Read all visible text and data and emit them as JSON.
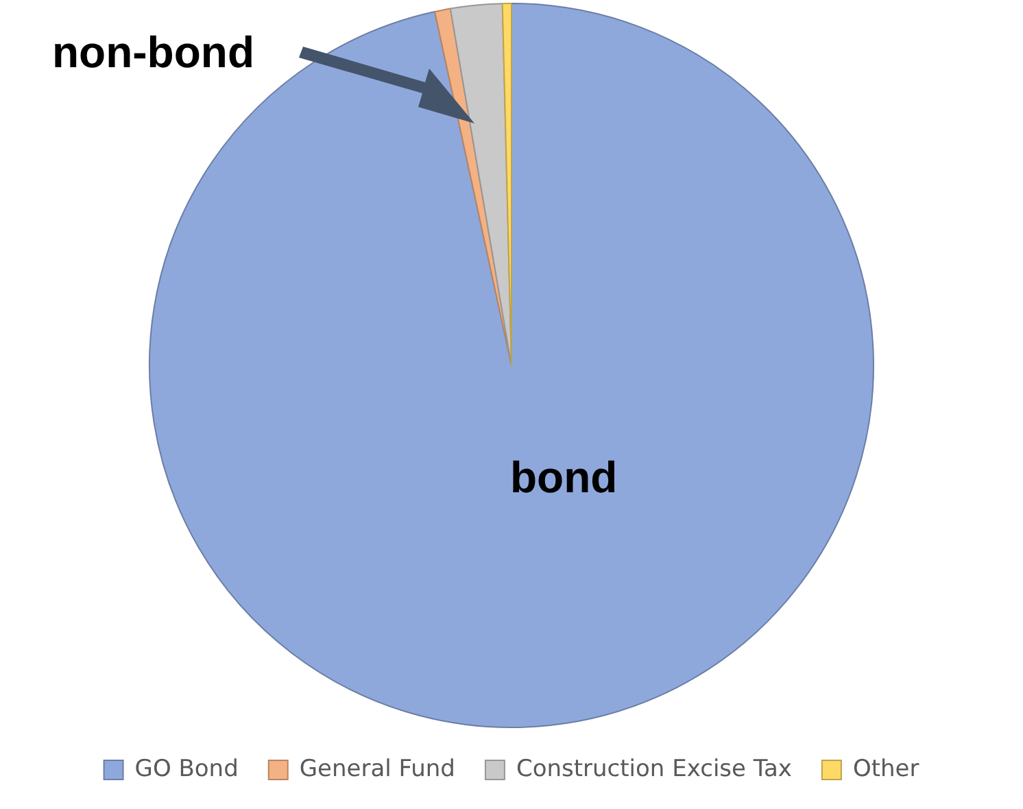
{
  "chart_data": {
    "type": "pie",
    "categories": [
      "GO Bond",
      "General Fund",
      "Construction Excise Tax",
      "Other"
    ],
    "values": [
      96.6,
      0.7,
      2.3,
      0.4
    ],
    "colors": [
      "#8fa8dc",
      "#f4b183",
      "#c9c9c9",
      "#ffd966"
    ],
    "legend": "bottom",
    "annotations": [
      "non-bond",
      "bond"
    ]
  }
}
